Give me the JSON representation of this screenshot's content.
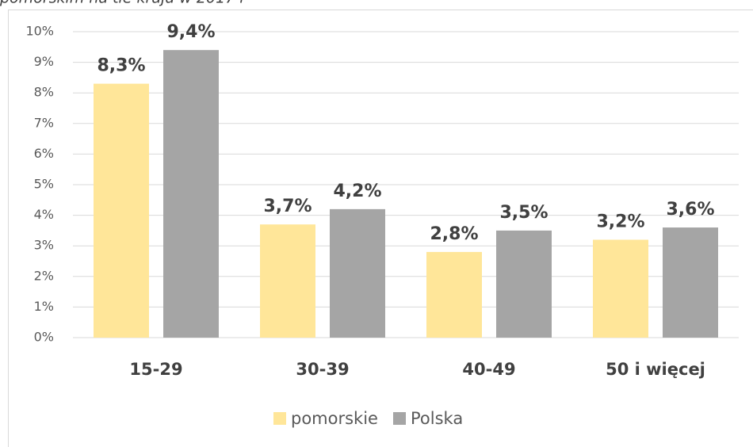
{
  "chart_data": {
    "type": "bar",
    "title": "pomorskim na tle kraju w 2017 r",
    "categories": [
      "15-29",
      "30-39",
      "40-49",
      "50 i więcej"
    ],
    "series": [
      {
        "name": "pomorskie",
        "color": "#FFE699",
        "values": [
          8.3,
          3.7,
          2.8,
          3.2
        ],
        "value_labels": [
          "8,3%",
          "3,7%",
          "2,8%",
          "3,2%"
        ]
      },
      {
        "name": "Polska",
        "color": "#A5A5A5",
        "values": [
          9.4,
          4.2,
          3.5,
          3.6
        ],
        "value_labels": [
          "9,4%",
          "4,2%",
          "3,5%",
          "3,6%"
        ]
      }
    ],
    "ylim": [
      0,
      10
    ],
    "yticks": [
      {
        "value": 0,
        "label": "0%"
      },
      {
        "value": 1,
        "label": "1%"
      },
      {
        "value": 2,
        "label": "2%"
      },
      {
        "value": 3,
        "label": "3%"
      },
      {
        "value": 4,
        "label": "4%"
      },
      {
        "value": 5,
        "label": "5%"
      },
      {
        "value": 6,
        "label": "6%"
      },
      {
        "value": 7,
        "label": "7%"
      },
      {
        "value": 8,
        "label": "8%"
      },
      {
        "value": 9,
        "label": "9%"
      },
      {
        "value": 10,
        "label": "10%"
      }
    ],
    "grid": true,
    "legend": "bottom"
  }
}
